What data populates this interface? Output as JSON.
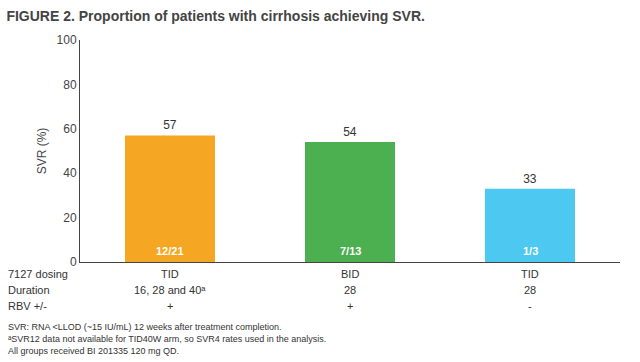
{
  "chart_data": {
    "type": "bar",
    "title": "FIGURE 2. Proportion of patients with cirrhosis achieving SVR.",
    "ylabel": "SVR (%)",
    "categories": [
      "TID",
      "BID",
      "TID"
    ],
    "category_title": "7127 dosing",
    "values": [
      57,
      54,
      33
    ],
    "colors": [
      "#F5A623",
      "#4CAF50",
      "#4DC8F0"
    ],
    "data_labels": true,
    "inside_labels": [
      "12/21",
      "7/13",
      "1/3"
    ],
    "x_table": [
      {
        "label": "Duration",
        "values": [
          "16, 28 and 40ᵃ",
          "28",
          "28"
        ]
      },
      {
        "label": "RBV +/-",
        "values": [
          "+",
          "+",
          "-"
        ]
      }
    ],
    "footnotes": [
      "SVR: RNA <LLOD (~15 IU/mL) 12 weeks after treatment completion.",
      "ᵃSVR12 data not available for TID40W arm, so SVR4 rates used in the analysis.",
      "All groups received BI 201335 120 mg QD."
    ],
    "ylim": [
      0,
      100
    ],
    "yticks": [
      0,
      20,
      40,
      60,
      80,
      100
    ],
    "grid": false,
    "tick_labels": "y"
  }
}
